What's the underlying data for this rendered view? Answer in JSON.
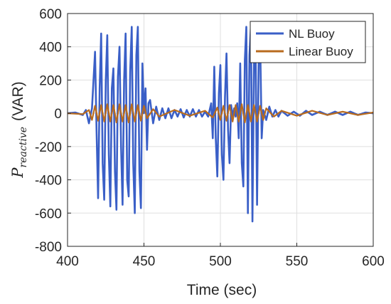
{
  "chart_data": {
    "type": "line",
    "title": "",
    "xlabel": "Time (sec)",
    "ylabel_main": "P",
    "ylabel_sub": "reactive",
    "ylabel_unit": "(VAR)",
    "xlim": [
      400,
      600
    ],
    "ylim": [
      -800,
      600
    ],
    "xticks": [
      400,
      450,
      500,
      550,
      600
    ],
    "yticks": [
      600,
      400,
      200,
      0,
      -200,
      -400,
      -600,
      -800
    ],
    "grid": true,
    "legend_position": "top-right",
    "series": [
      {
        "name": "NL Buoy",
        "color": "#3a5fc7",
        "x": [
          400,
          405,
          410,
          412,
          414,
          416,
          418,
          419,
          420,
          421,
          422,
          423,
          424,
          425,
          426,
          427,
          428,
          429,
          430,
          431,
          432,
          433,
          434,
          435,
          436,
          437,
          438,
          439,
          440,
          441,
          442,
          443,
          444,
          445,
          446,
          447,
          448,
          449,
          450,
          451,
          452,
          453,
          454,
          456,
          458,
          460,
          462,
          464,
          466,
          468,
          470,
          472,
          474,
          476,
          478,
          480,
          482,
          484,
          486,
          488,
          490,
          492,
          494,
          495,
          496,
          497,
          498,
          499,
          500,
          501,
          502,
          503,
          504,
          505,
          506,
          507,
          508,
          509,
          510,
          511,
          512,
          513,
          514,
          515,
          516,
          517,
          518,
          519,
          520,
          521,
          522,
          523,
          524,
          525,
          526,
          527,
          528,
          530,
          532,
          534,
          536,
          538,
          540,
          544,
          548,
          552,
          556,
          560,
          565,
          570,
          575,
          580,
          585,
          590,
          595,
          600
        ],
        "y": [
          0,
          5,
          -10,
          20,
          -60,
          30,
          370,
          -100,
          -510,
          150,
          480,
          -300,
          -520,
          200,
          470,
          -250,
          -560,
          150,
          270,
          -350,
          -580,
          220,
          400,
          -200,
          -550,
          200,
          480,
          -400,
          -500,
          250,
          520,
          -300,
          -600,
          350,
          520,
          -350,
          -570,
          300,
          0,
          150,
          -220,
          60,
          80,
          -60,
          40,
          -40,
          30,
          -30,
          30,
          -30,
          20,
          -20,
          25,
          -25,
          20,
          -20,
          25,
          -20,
          20,
          -20,
          10,
          -20,
          60,
          -150,
          280,
          -150,
          -380,
          120,
          290,
          -250,
          -400,
          100,
          360,
          -100,
          -300,
          50,
          -20,
          30,
          -20,
          60,
          -150,
          300,
          -300,
          -440,
          320,
          520,
          -600,
          350,
          530,
          -650,
          300,
          450,
          -550,
          300,
          450,
          -150,
          20,
          -40,
          40,
          -20,
          20,
          -20,
          15,
          -15,
          10,
          -15,
          15,
          -10,
          10,
          -10,
          10,
          -10,
          10,
          -10,
          5,
          0
        ]
      },
      {
        "name": "Linear Buoy",
        "color": "#b86b1e",
        "x": [
          400,
          410,
          414,
          416,
          418,
          420,
          422,
          424,
          426,
          428,
          430,
          432,
          434,
          436,
          438,
          440,
          442,
          444,
          446,
          448,
          450,
          452,
          456,
          460,
          470,
          480,
          490,
          495,
          498,
          500,
          502,
          504,
          506,
          508,
          510,
          512,
          514,
          516,
          518,
          520,
          522,
          524,
          526,
          528,
          530,
          535,
          540,
          550,
          560,
          570,
          580,
          590,
          600
        ],
        "y": [
          0,
          -5,
          20,
          -40,
          45,
          -45,
          50,
          -50,
          55,
          -50,
          50,
          -55,
          55,
          -50,
          50,
          -55,
          55,
          -50,
          50,
          -45,
          45,
          -30,
          25,
          -20,
          20,
          -15,
          15,
          -25,
          35,
          -40,
          45,
          -45,
          50,
          -50,
          50,
          -50,
          55,
          -55,
          50,
          -50,
          50,
          -50,
          45,
          -40,
          30,
          -20,
          15,
          -15,
          15,
          -10,
          10,
          -10,
          5
        ]
      }
    ]
  },
  "legend": {
    "series_names": [
      "NL Buoy",
      "Linear Buoy"
    ]
  }
}
